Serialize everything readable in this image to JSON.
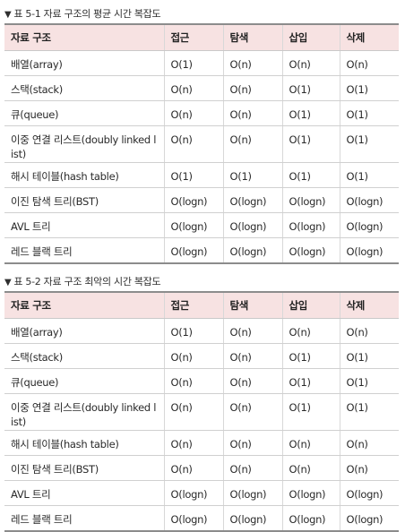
{
  "table1": {
    "marker": "▼",
    "caption": "표 5-1 자료 구조의 평균 시간 복잡도",
    "headers": [
      "자료 구조",
      "접근",
      "탐색",
      "삽입",
      "삭제"
    ],
    "rows": [
      [
        "배열(array)",
        "O(1)",
        "O(n)",
        "O(n)",
        "O(n)"
      ],
      [
        "스택(stack)",
        "O(n)",
        "O(n)",
        "O(1)",
        "O(1)"
      ],
      [
        "큐(queue)",
        "O(n)",
        "O(n)",
        "O(1)",
        "O(1)"
      ],
      [
        "이중 연결 리스트(doubly linked list)",
        "O(n)",
        "O(n)",
        "O(1)",
        "O(1)"
      ],
      [
        "해시 테이블(hash table)",
        "O(1)",
        "O(1)",
        "O(1)",
        "O(1)"
      ],
      [
        "이진 탐색 트리(BST)",
        "O(logn)",
        "O(logn)",
        "O(logn)",
        "O(logn)"
      ],
      [
        "AVL 트리",
        "O(logn)",
        "O(logn)",
        "O(logn)",
        "O(logn)"
      ],
      [
        "레드 블랙 트리",
        "O(logn)",
        "O(logn)",
        "O(logn)",
        "O(logn)"
      ]
    ]
  },
  "table2": {
    "marker": "▼",
    "caption": "표 5-2 자료 구조 최악의 시간 복잡도",
    "headers": [
      "자료 구조",
      "접근",
      "탐색",
      "삽입",
      "삭제"
    ],
    "rows": [
      [
        "배열(array)",
        "O(1)",
        "O(n)",
        "O(n)",
        "O(n)"
      ],
      [
        "스택(stack)",
        "O(n)",
        "O(n)",
        "O(1)",
        "O(1)"
      ],
      [
        "큐(queue)",
        "O(n)",
        "O(n)",
        "O(1)",
        "O(1)"
      ],
      [
        "이중 연결 리스트(doubly linked list)",
        "O(n)",
        "O(n)",
        "O(1)",
        "O(1)"
      ],
      [
        "해시 테이블(hash table)",
        "O(n)",
        "O(n)",
        "O(n)",
        "O(n)"
      ],
      [
        "이진 탐색 트리(BST)",
        "O(n)",
        "O(n)",
        "O(n)",
        "O(n)"
      ],
      [
        "AVL 트리",
        "O(logn)",
        "O(logn)",
        "O(logn)",
        "O(logn)"
      ],
      [
        "레드 블랙 트리",
        "O(logn)",
        "O(logn)",
        "O(logn)",
        "O(logn)"
      ]
    ]
  },
  "colors": {
    "header_bg": "#f7e2e2",
    "rule": "#8c8c8c",
    "text": "#2a2a2a"
  }
}
